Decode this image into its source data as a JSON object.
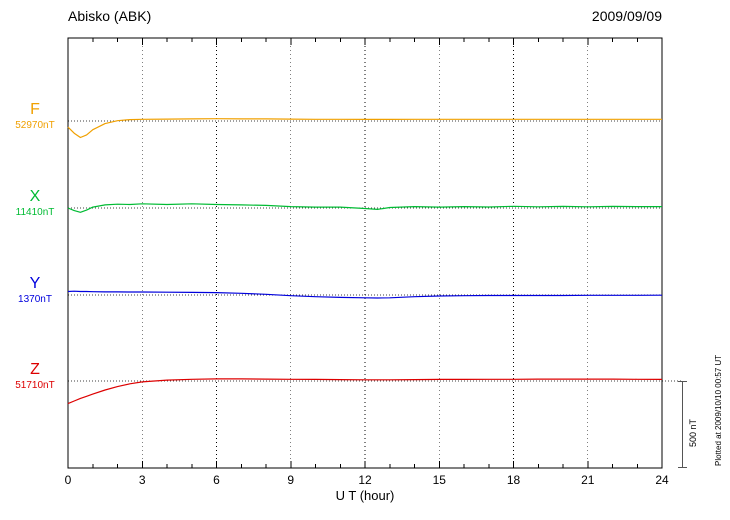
{
  "header": {
    "station": "Abisko (ABK)",
    "date": "2009/09/09"
  },
  "scale_bar": {
    "label": "500 nT"
  },
  "side_note": {
    "text": "Plotted at 2009/10/10 00:57 UT"
  },
  "chart_data": {
    "type": "line",
    "title": "Abisko (ABK)",
    "subtitle": "2009/09/09",
    "xlabel": "U T (hour)",
    "xlim": [
      0,
      24
    ],
    "x_ticks": [
      0,
      3,
      6,
      9,
      12,
      15,
      18,
      21,
      24
    ],
    "grid": "dotted vertical lines at 3-hour intervals; dotted horizontal baseline per channel",
    "scale_nT_per_division": 500,
    "x": [
      0,
      0.25,
      0.5,
      0.75,
      1,
      1.5,
      2,
      2.5,
      3,
      4,
      5,
      6,
      7,
      8,
      9,
      10,
      11,
      12,
      12.5,
      13,
      14,
      15,
      16,
      17,
      18,
      19,
      20,
      21,
      22,
      23,
      24
    ],
    "series": [
      {
        "name": "F",
        "baseline_label": "52970nT",
        "baseline_nT": 52970,
        "color": "#f0a000",
        "offsets_nT": [
          -35,
          -70,
          -95,
          -80,
          -50,
          -15,
          2,
          8,
          10,
          11,
          12,
          13,
          12,
          12,
          11,
          10,
          10,
          9,
          9,
          9,
          10,
          10,
          10,
          10,
          10,
          10,
          10,
          10,
          10,
          10,
          10
        ]
      },
      {
        "name": "X",
        "baseline_label": "11410nT",
        "baseline_nT": 11410,
        "color": "#00bb33",
        "offsets_nT": [
          0,
          -15,
          -25,
          -12,
          5,
          18,
          22,
          20,
          24,
          20,
          24,
          20,
          18,
          15,
          8,
          5,
          5,
          -3,
          -8,
          3,
          8,
          5,
          8,
          6,
          10,
          7,
          9,
          7,
          9,
          8,
          8
        ]
      },
      {
        "name": "Y",
        "baseline_label": "1370nT",
        "baseline_nT": 1370,
        "color": "#0000dd",
        "offsets_nT": [
          20,
          22,
          20,
          20,
          19,
          18,
          18,
          17,
          17,
          16,
          15,
          14,
          10,
          4,
          -4,
          -10,
          -14,
          -16,
          -17,
          -16,
          -10,
          -6,
          -4,
          -3,
          -3,
          -3,
          -3,
          -2,
          -2,
          -2,
          -1
        ]
      },
      {
        "name": "Z",
        "baseline_label": "51710nT",
        "baseline_nT": 51710,
        "color": "#dd0000",
        "offsets_nT": [
          -130,
          -115,
          -100,
          -88,
          -75,
          -52,
          -32,
          -16,
          -5,
          5,
          10,
          12,
          12,
          11,
          10,
          9,
          8,
          7,
          7,
          7,
          8,
          9,
          9,
          10,
          10,
          11,
          11,
          11,
          11,
          10,
          9
        ]
      }
    ]
  }
}
